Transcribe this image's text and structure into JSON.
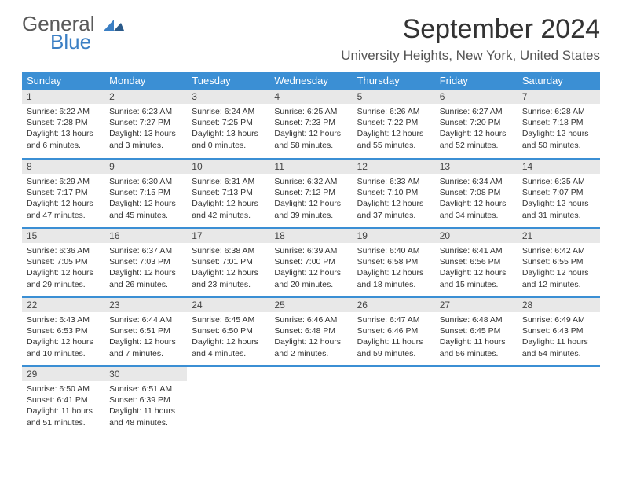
{
  "logo": {
    "general": "General",
    "blue": "Blue"
  },
  "title": "September 2024",
  "location": "University Heights, New York, United States",
  "weekdays": [
    "Sunday",
    "Monday",
    "Tuesday",
    "Wednesday",
    "Thursday",
    "Friday",
    "Saturday"
  ],
  "header_bg": "#3b8fd4",
  "header_fg": "#ffffff",
  "daynum_bg": "#e8e8e8",
  "days": [
    {
      "n": "1",
      "sr": "6:22 AM",
      "ss": "7:28 PM",
      "dl": "13 hours and 6 minutes."
    },
    {
      "n": "2",
      "sr": "6:23 AM",
      "ss": "7:27 PM",
      "dl": "13 hours and 3 minutes."
    },
    {
      "n": "3",
      "sr": "6:24 AM",
      "ss": "7:25 PM",
      "dl": "13 hours and 0 minutes."
    },
    {
      "n": "4",
      "sr": "6:25 AM",
      "ss": "7:23 PM",
      "dl": "12 hours and 58 minutes."
    },
    {
      "n": "5",
      "sr": "6:26 AM",
      "ss": "7:22 PM",
      "dl": "12 hours and 55 minutes."
    },
    {
      "n": "6",
      "sr": "6:27 AM",
      "ss": "7:20 PM",
      "dl": "12 hours and 52 minutes."
    },
    {
      "n": "7",
      "sr": "6:28 AM",
      "ss": "7:18 PM",
      "dl": "12 hours and 50 minutes."
    },
    {
      "n": "8",
      "sr": "6:29 AM",
      "ss": "7:17 PM",
      "dl": "12 hours and 47 minutes."
    },
    {
      "n": "9",
      "sr": "6:30 AM",
      "ss": "7:15 PM",
      "dl": "12 hours and 45 minutes."
    },
    {
      "n": "10",
      "sr": "6:31 AM",
      "ss": "7:13 PM",
      "dl": "12 hours and 42 minutes."
    },
    {
      "n": "11",
      "sr": "6:32 AM",
      "ss": "7:12 PM",
      "dl": "12 hours and 39 minutes."
    },
    {
      "n": "12",
      "sr": "6:33 AM",
      "ss": "7:10 PM",
      "dl": "12 hours and 37 minutes."
    },
    {
      "n": "13",
      "sr": "6:34 AM",
      "ss": "7:08 PM",
      "dl": "12 hours and 34 minutes."
    },
    {
      "n": "14",
      "sr": "6:35 AM",
      "ss": "7:07 PM",
      "dl": "12 hours and 31 minutes."
    },
    {
      "n": "15",
      "sr": "6:36 AM",
      "ss": "7:05 PM",
      "dl": "12 hours and 29 minutes."
    },
    {
      "n": "16",
      "sr": "6:37 AM",
      "ss": "7:03 PM",
      "dl": "12 hours and 26 minutes."
    },
    {
      "n": "17",
      "sr": "6:38 AM",
      "ss": "7:01 PM",
      "dl": "12 hours and 23 minutes."
    },
    {
      "n": "18",
      "sr": "6:39 AM",
      "ss": "7:00 PM",
      "dl": "12 hours and 20 minutes."
    },
    {
      "n": "19",
      "sr": "6:40 AM",
      "ss": "6:58 PM",
      "dl": "12 hours and 18 minutes."
    },
    {
      "n": "20",
      "sr": "6:41 AM",
      "ss": "6:56 PM",
      "dl": "12 hours and 15 minutes."
    },
    {
      "n": "21",
      "sr": "6:42 AM",
      "ss": "6:55 PM",
      "dl": "12 hours and 12 minutes."
    },
    {
      "n": "22",
      "sr": "6:43 AM",
      "ss": "6:53 PM",
      "dl": "12 hours and 10 minutes."
    },
    {
      "n": "23",
      "sr": "6:44 AM",
      "ss": "6:51 PM",
      "dl": "12 hours and 7 minutes."
    },
    {
      "n": "24",
      "sr": "6:45 AM",
      "ss": "6:50 PM",
      "dl": "12 hours and 4 minutes."
    },
    {
      "n": "25",
      "sr": "6:46 AM",
      "ss": "6:48 PM",
      "dl": "12 hours and 2 minutes."
    },
    {
      "n": "26",
      "sr": "6:47 AM",
      "ss": "6:46 PM",
      "dl": "11 hours and 59 minutes."
    },
    {
      "n": "27",
      "sr": "6:48 AM",
      "ss": "6:45 PM",
      "dl": "11 hours and 56 minutes."
    },
    {
      "n": "28",
      "sr": "6:49 AM",
      "ss": "6:43 PM",
      "dl": "11 hours and 54 minutes."
    },
    {
      "n": "29",
      "sr": "6:50 AM",
      "ss": "6:41 PM",
      "dl": "11 hours and 51 minutes."
    },
    {
      "n": "30",
      "sr": "6:51 AM",
      "ss": "6:39 PM",
      "dl": "11 hours and 48 minutes."
    }
  ],
  "labels": {
    "sunrise": "Sunrise:",
    "sunset": "Sunset:",
    "daylight": "Daylight:"
  }
}
